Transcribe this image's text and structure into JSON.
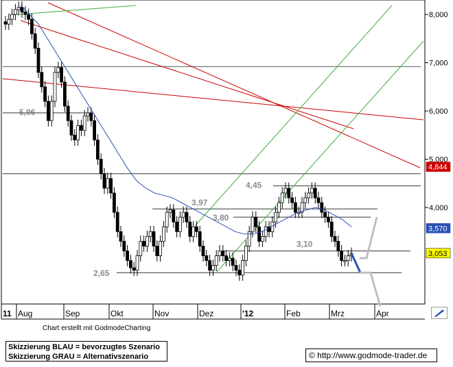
{
  "chart_data": {
    "type": "candlestick",
    "x_labels": [
      "11",
      "Aug",
      "Sep",
      "Okt",
      "Nov",
      "Dez",
      "'12",
      "Feb",
      "Mrz",
      "Apr"
    ],
    "y_ticks": [
      "8,000",
      "7,000",
      "6,000",
      "5,000",
      "4,000"
    ],
    "ylim": [
      2.0,
      8.3
    ],
    "price_tags": [
      {
        "label": "4,844",
        "value": 4.844,
        "color": "#cc0000",
        "text_color": "#ffffff"
      },
      {
        "label": "3,570",
        "value": 3.57,
        "color": "#2a4fb5",
        "text_color": "#ffffff"
      },
      {
        "label": "3,053",
        "value": 3.053,
        "color": "#ffff00",
        "text_color": "#000000"
      }
    ],
    "level_labels": [
      {
        "label": "5,96",
        "value": 5.96
      },
      {
        "label": "4,45",
        "value": 4.45
      },
      {
        "label": "3,97",
        "value": 3.97
      },
      {
        "label": "3,80",
        "value": 3.8
      },
      {
        "label": "3,10",
        "value": 3.1
      },
      {
        "label": "2,65",
        "value": 2.65
      }
    ],
    "horizontal_levels": [
      6.92,
      5.96,
      4.7,
      4.45,
      3.97,
      3.8,
      3.1,
      2.65
    ],
    "series": [
      {
        "type": "ohlc",
        "close_values": [
          7.8,
          7.9,
          8.0,
          8.1,
          8.15,
          8.05,
          8.0,
          7.9,
          7.6,
          7.3,
          6.8,
          6.5,
          6.2,
          5.8,
          6.2,
          6.8,
          6.9,
          6.6,
          6.1,
          5.8,
          5.5,
          5.4,
          5.7,
          5.6,
          5.9,
          5.96,
          5.8,
          5.4,
          5.0,
          4.7,
          4.4,
          4.6,
          4.3,
          3.9,
          3.5,
          3.3,
          3.1,
          2.9,
          2.75,
          2.7,
          3.0,
          3.3,
          3.2,
          3.4,
          3.5,
          3.2,
          3.0,
          3.3,
          3.6,
          3.9,
          3.95,
          3.7,
          3.5,
          3.8,
          3.9,
          3.7,
          3.4,
          3.6,
          3.5,
          3.2,
          3.0,
          2.9,
          2.7,
          2.8,
          3.0,
          3.1,
          3.0,
          2.9,
          2.95,
          2.8,
          2.7,
          2.6,
          2.9,
          3.2,
          3.5,
          3.8,
          3.6,
          3.3,
          3.4,
          3.6,
          3.5,
          3.7,
          3.9,
          4.1,
          4.3,
          4.4,
          4.2,
          4.1,
          3.9,
          3.9,
          4.1,
          4.2,
          4.3,
          4.4,
          4.2,
          4.1,
          3.9,
          3.8,
          3.7,
          3.4,
          3.3,
          3.1,
          2.9,
          2.9,
          3.0,
          3.05
        ]
      },
      {
        "type": "moving_average",
        "color": "#2a4fb5",
        "values": [
          8.2,
          8.0,
          7.8,
          7.5,
          7.2,
          6.9,
          6.6,
          6.3,
          6.0,
          5.7,
          5.4,
          5.1,
          4.8,
          4.55,
          4.4,
          4.3,
          4.25,
          4.2,
          4.1,
          4.0,
          3.9,
          3.8,
          3.7,
          3.6,
          3.5,
          3.45,
          3.45,
          3.5,
          3.6,
          3.7,
          3.8,
          3.9,
          3.95,
          4.0,
          3.95,
          3.85,
          3.75,
          3.6
        ]
      }
    ],
    "trendlines": [
      {
        "color": "#cc0000",
        "label": ""
      },
      {
        "color": "#cc0000",
        "label": ""
      },
      {
        "color": "#cc0000",
        "label": ""
      },
      {
        "color": "#3cae3c",
        "label": ""
      },
      {
        "color": "#3cae3c",
        "label": ""
      },
      {
        "color": "#3cae3c",
        "label": ""
      }
    ],
    "scenarios": [
      {
        "name": "BLAU",
        "color": "#2a4fb5"
      },
      {
        "name": "GRAU",
        "color": "#bfbfbf"
      }
    ]
  },
  "legend": {
    "blue_text": "Skizzierung BLAU = bevorzugtes Szenario",
    "gray_text": "Skizzierung GRAU = Alternativszenario"
  },
  "credit": "Chart erstellt mit GodmodeCharting",
  "url": "© http://www.godmode-trader.de"
}
